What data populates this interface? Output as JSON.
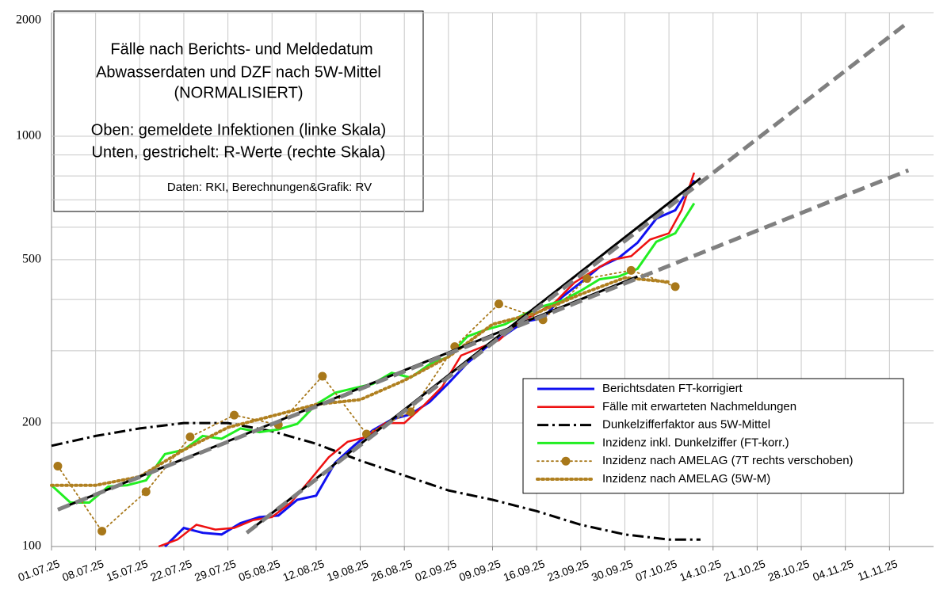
{
  "chart_data": {
    "type": "line",
    "yscale": "log",
    "title": "Fälle nach Berichts- und Meldedatum",
    "subtitle": [
      "Abwasserdaten und DZF nach 5W-Mittel",
      "(NORMALISIERT)"
    ],
    "annotations": [
      "Oben: gemeldete Infektionen (linke Skala)",
      "Unten, gestrichelt: R-Werte (rechte Skala)",
      "Daten: RKI, Berechnungen&Grafik: RV"
    ],
    "xlim": [
      "2025-07-01",
      "2025-11-18"
    ],
    "xticks": [
      {
        "value": "2025-07-01",
        "label": "01.07.25"
      },
      {
        "value": "2025-07-08",
        "label": "08.07.25"
      },
      {
        "value": "2025-07-15",
        "label": "15.07.25"
      },
      {
        "value": "2025-07-22",
        "label": "22.07.25"
      },
      {
        "value": "2025-07-29",
        "label": "29.07.25"
      },
      {
        "value": "2025-08-05",
        "label": "05.08.25"
      },
      {
        "value": "2025-08-12",
        "label": "12.08.25"
      },
      {
        "value": "2025-08-19",
        "label": "19.08.25"
      },
      {
        "value": "2025-08-26",
        "label": "26.08.25"
      },
      {
        "value": "2025-09-02",
        "label": "02.09.25"
      },
      {
        "value": "2025-09-09",
        "label": "09.09.25"
      },
      {
        "value": "2025-09-16",
        "label": "16.09.25"
      },
      {
        "value": "2025-09-23",
        "label": "23.09.25"
      },
      {
        "value": "2025-09-30",
        "label": "30.09.25"
      },
      {
        "value": "2025-10-07",
        "label": "07.10.25"
      },
      {
        "value": "2025-10-14",
        "label": "14.10.25"
      },
      {
        "value": "2025-10-21",
        "label": "21.10.25"
      },
      {
        "value": "2025-10-28",
        "label": "28.10.25"
      },
      {
        "value": "2025-11-04",
        "label": "04.11.25"
      },
      {
        "value": "2025-11-11",
        "label": "11.11.25"
      }
    ],
    "ylim": [
      100,
      2000
    ],
    "yticks": [
      100,
      200,
      500,
      1000,
      2000
    ],
    "yminor": [
      300,
      400,
      600,
      700,
      800,
      900
    ],
    "grid": true,
    "legend": "lower right",
    "series": [
      {
        "name": "Berichtsdaten FT-korrigiert",
        "color": "#1010f0",
        "style": "solid",
        "width": 3,
        "x": [
          "2025-07-19",
          "2025-07-22",
          "2025-07-25",
          "2025-07-28",
          "2025-07-31",
          "2025-08-03",
          "2025-08-06",
          "2025-08-09",
          "2025-08-12",
          "2025-08-15",
          "2025-08-18",
          "2025-08-21",
          "2025-08-24",
          "2025-08-27",
          "2025-08-30",
          "2025-09-02",
          "2025-09-05",
          "2025-09-08",
          "2025-09-11",
          "2025-09-14",
          "2025-09-17",
          "2025-09-20",
          "2025-09-23",
          "2025-09-26",
          "2025-09-29",
          "2025-10-02",
          "2025-10-05",
          "2025-10-08",
          "2025-10-11"
        ],
        "values": [
          100,
          111,
          108,
          107,
          114,
          118,
          119,
          130,
          133,
          160,
          176,
          192,
          204,
          210,
          225,
          250,
          280,
          306,
          328,
          353,
          360,
          405,
          440,
          480,
          505,
          550,
          630,
          660,
          781
        ]
      },
      {
        "name": "Fälle mit erwarteten Nachmeldungen",
        "color": "#ee1111",
        "style": "solid",
        "width": 2.5,
        "x": [
          "2025-07-18",
          "2025-07-21",
          "2025-07-24",
          "2025-07-27",
          "2025-07-30",
          "2025-08-02",
          "2025-08-05",
          "2025-08-08",
          "2025-08-11",
          "2025-08-14",
          "2025-08-17",
          "2025-08-20",
          "2025-08-23",
          "2025-08-26",
          "2025-08-29",
          "2025-09-01",
          "2025-09-04",
          "2025-09-07",
          "2025-09-10",
          "2025-09-13",
          "2025-09-16",
          "2025-09-19",
          "2025-09-22",
          "2025-09-25",
          "2025-09-28",
          "2025-10-01",
          "2025-10-04",
          "2025-10-07",
          "2025-10-09",
          "2025-10-11"
        ],
        "values": [
          100,
          104,
          113,
          110,
          111,
          116,
          118,
          128,
          145,
          165,
          180,
          185,
          200,
          200,
          220,
          245,
          292,
          305,
          318,
          350,
          370,
          395,
          440,
          470,
          500,
          510,
          560,
          580,
          660,
          815
        ]
      },
      {
        "name": "Dunkelzifferfaktor aus 5W-Mittel",
        "color": "#000000",
        "style": "dashdot",
        "width": 3,
        "x": [
          "2025-07-01",
          "2025-07-08",
          "2025-07-15",
          "2025-07-22",
          "2025-07-29",
          "2025-08-05",
          "2025-08-12",
          "2025-08-19",
          "2025-08-26",
          "2025-09-02",
          "2025-09-09",
          "2025-09-16",
          "2025-09-23",
          "2025-09-30",
          "2025-10-07",
          "2025-10-12"
        ],
        "values": [
          176,
          186,
          194,
          200,
          200,
          191,
          178,
          162,
          149,
          137,
          130,
          122,
          113,
          107,
          104,
          104
        ]
      },
      {
        "name": "Inzidenz inkl. Dunkelziffer (FT-korr.)",
        "color": "#22ee22",
        "style": "solid",
        "width": 3,
        "x": [
          "2025-07-01",
          "2025-07-04",
          "2025-07-07",
          "2025-07-10",
          "2025-07-13",
          "2025-07-16",
          "2025-07-19",
          "2025-07-22",
          "2025-07-25",
          "2025-07-28",
          "2025-07-31",
          "2025-08-03",
          "2025-08-06",
          "2025-08-09",
          "2025-08-12",
          "2025-08-15",
          "2025-08-18",
          "2025-08-21",
          "2025-08-24",
          "2025-08-27",
          "2025-08-30",
          "2025-09-02",
          "2025-09-05",
          "2025-09-08",
          "2025-09-11",
          "2025-09-14",
          "2025-09-17",
          "2025-09-20",
          "2025-09-23",
          "2025-09-26",
          "2025-09-29",
          "2025-10-02",
          "2025-10-05",
          "2025-10-08",
          "2025-10-11"
        ],
        "values": [
          141,
          128,
          128,
          140,
          141,
          145,
          168,
          172,
          186,
          183,
          194,
          190,
          193,
          199,
          222,
          237,
          243,
          249,
          265,
          258,
          278,
          290,
          325,
          338,
          348,
          368,
          385,
          397,
          420,
          448,
          455,
          475,
          553,
          580,
          686
        ]
      },
      {
        "name": "Inzidenz nach AMELAG (7T rechts verschoben)",
        "color": "#a8781a",
        "style": "dotted",
        "width": 1.8,
        "marker": "circle",
        "x": [
          "2025-07-02",
          "2025-07-09",
          "2025-07-16",
          "2025-07-23",
          "2025-07-30",
          "2025-08-06",
          "2025-08-13",
          "2025-08-20",
          "2025-08-27",
          "2025-09-03",
          "2025-09-10",
          "2025-09-17",
          "2025-09-24",
          "2025-10-01",
          "2025-10-08"
        ],
        "values": [
          157,
          109,
          136,
          185,
          209,
          198,
          260,
          188,
          213,
          307,
          390,
          357,
          450,
          471,
          430
        ]
      },
      {
        "name": "Inzidenz nach AMELAG (5W-M)",
        "color": "#b08020",
        "style": "dotted",
        "width": 4,
        "x": [
          "2025-07-01",
          "2025-07-08",
          "2025-07-15",
          "2025-07-22",
          "2025-07-29",
          "2025-08-05",
          "2025-08-12",
          "2025-08-19",
          "2025-08-26",
          "2025-09-02",
          "2025-09-09",
          "2025-09-16",
          "2025-09-23",
          "2025-09-30",
          "2025-10-07"
        ],
        "values": [
          141,
          141,
          148,
          172,
          195,
          208,
          222,
          228,
          254,
          290,
          348,
          371,
          412,
          452,
          441
        ]
      },
      {
        "color": "#000000",
        "style": "solid",
        "width": 3,
        "x": [
          "2025-07-02",
          "2025-10-02"
        ],
        "values": [
          123,
          455
        ]
      },
      {
        "color": "#000000",
        "style": "solid",
        "width": 3,
        "x": [
          "2025-08-01",
          "2025-10-12"
        ],
        "values": [
          108,
          790
        ]
      },
      {
        "color": "#808080",
        "style": "dashed",
        "width": 5,
        "x": [
          "2025-07-02",
          "2025-11-14"
        ],
        "values": [
          123,
          826
        ]
      },
      {
        "color": "#808080",
        "style": "dashed",
        "width": 5,
        "x": [
          "2025-08-01",
          "2025-11-14"
        ],
        "values": [
          108,
          1897
        ]
      }
    ]
  }
}
